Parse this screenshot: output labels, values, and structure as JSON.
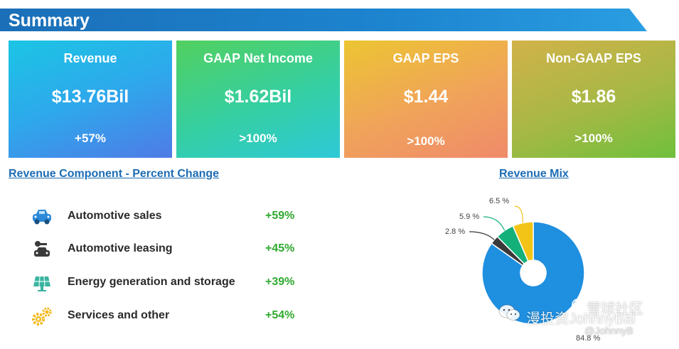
{
  "header": {
    "title": "Summary"
  },
  "cards": [
    {
      "label": "Revenue",
      "value": "$13.76Bil",
      "change": "+57%"
    },
    {
      "label": "GAAP Net Income",
      "value": "$1.62Bil",
      "change": ">100%"
    },
    {
      "label": "GAAP EPS",
      "value": "$1.44",
      "change": ">100%"
    },
    {
      "label": "Non-GAAP EPS",
      "value": "$1.86",
      "change": ">100%"
    }
  ],
  "components": {
    "title": "Revenue Component - Percent Change",
    "rows": [
      {
        "name": "Automotive sales",
        "pct": "+59%",
        "icon": "car-icon"
      },
      {
        "name": "Automotive leasing",
        "pct": "+45%",
        "icon": "car-key-icon"
      },
      {
        "name": "Energy generation and storage",
        "pct": "+39%",
        "icon": "solar-panel-icon"
      },
      {
        "name": "Services and other",
        "pct": "+54%",
        "icon": "gears-icon"
      }
    ]
  },
  "revenue_mix": {
    "title": "Revenue Mix",
    "slices": [
      {
        "label": "84.8 %",
        "value": 84.8,
        "color": "#1f8fe0"
      },
      {
        "label": "2.8 %",
        "value": 2.8,
        "color": "#3a3a3a"
      },
      {
        "label": "5.9 %",
        "value": 5.9,
        "color": "#14b07a"
      },
      {
        "label": "6.5 %",
        "value": 6.5,
        "color": "#f3c418"
      }
    ]
  },
  "watermark": {
    "text1": "雪球社区",
    "text2": "漫投资JohnnyBai",
    "text3": "@JohnnyB"
  },
  "colors": {
    "header": "#1b6fb8",
    "link": "#1c6cb4",
    "positive": "#2faa2f"
  }
}
